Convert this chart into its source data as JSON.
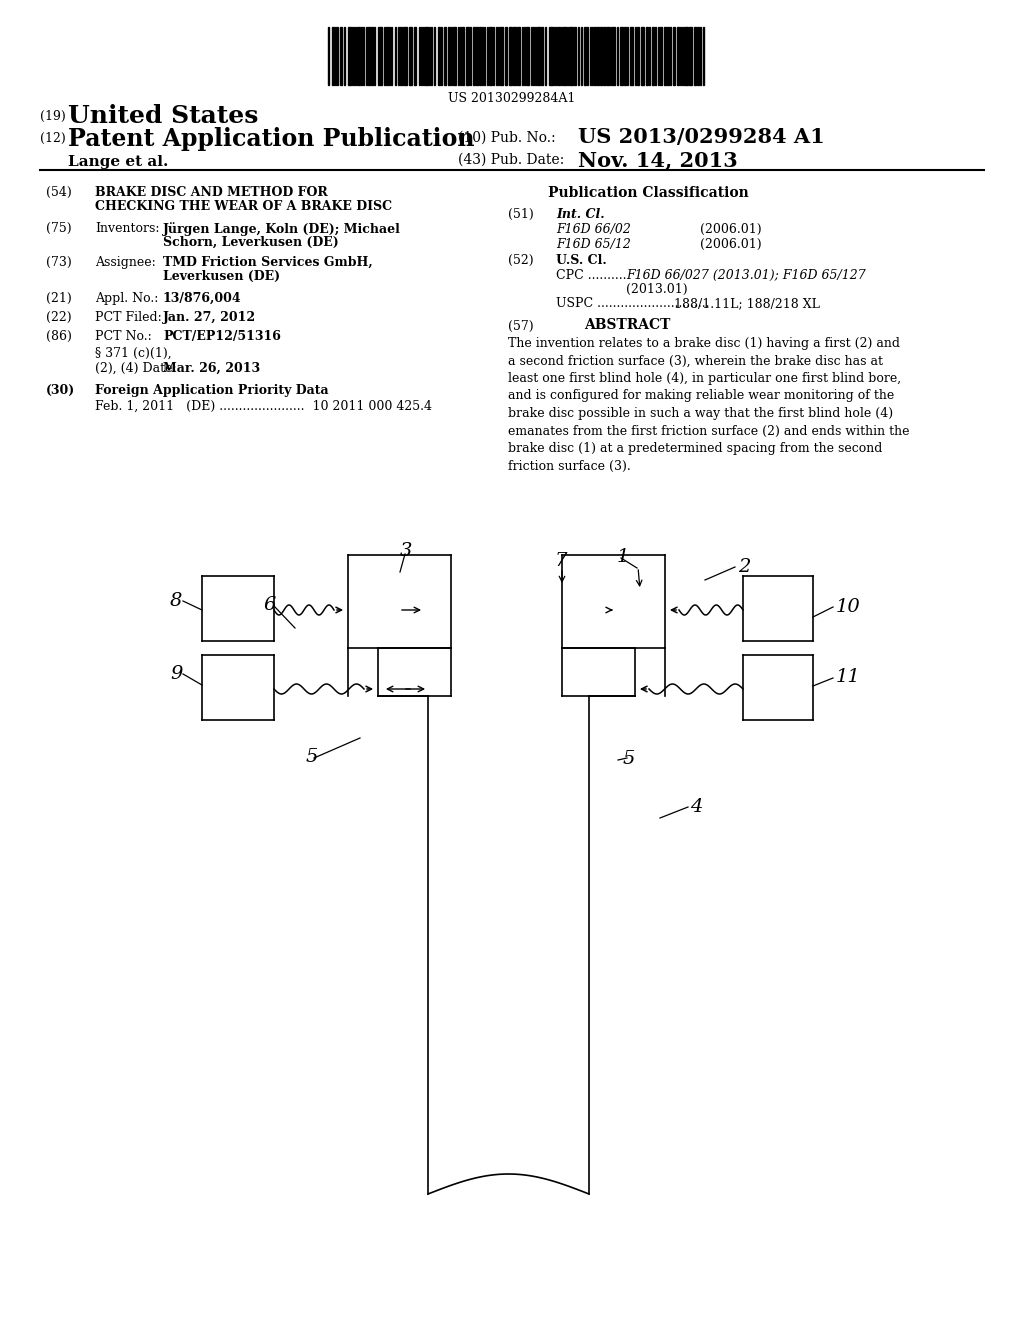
{
  "background_color": "#ffffff",
  "barcode_text": "US 20130299284A1",
  "header_19": "(19)",
  "header_country": "United States",
  "header_12": "(12)",
  "header_type": "Patent Application Publication",
  "header_10": "(10) Pub. No.:",
  "header_pubno": "US 2013/0299284 A1",
  "header_author": "Lange et al.",
  "header_43": "(43) Pub. Date:",
  "header_date": "Nov. 14, 2013",
  "pub_class_title": "Publication Classification",
  "field_51_text1": "F16D 66/02",
  "field_51_date1": "(2006.01)",
  "field_51_text2": "F16D 65/12",
  "field_51_date2": "(2006.01)",
  "field_57_title": "ABSTRACT",
  "field_57_text": "The invention relates to a brake disc (1) having a first (2) and a second friction surface (3), wherein the brake disc has at least one first blind hole (4), in particular one first blind bore, and is configured for making reliable wear monitoring of the brake disc possible in such a way that the first blind hole (4) emanates from the first friction surface (2) and ends within the brake disc (1) at a predetermined spacing from the second friction surface (3).",
  "diagram_labels": [
    "1",
    "2",
    "3",
    "4",
    "5",
    "5",
    "6",
    "7",
    "8",
    "9",
    "10",
    "11"
  ]
}
